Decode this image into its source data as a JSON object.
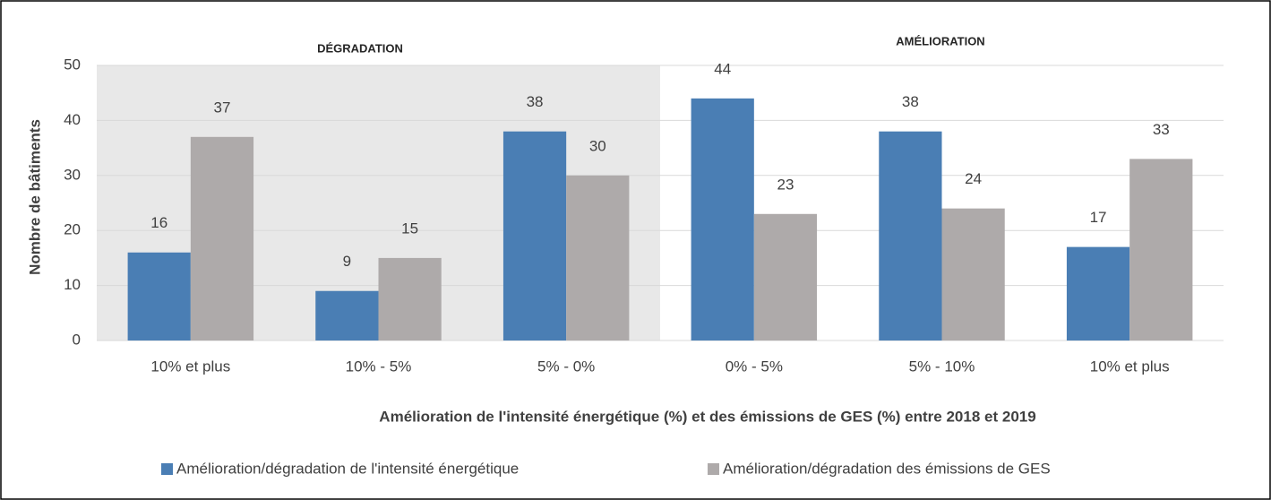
{
  "chart_data": {
    "type": "bar",
    "annotations": [
      "DÉGRADATION",
      "AMÉLIORATION"
    ],
    "y_label": "Nombre de bâtiments",
    "x_label": "Amélioration de l'intensité énergétique (%) et des émissions de GES (%) entre 2018 et 2019",
    "categories": [
      "10% et plus",
      "10% - 5%",
      "5% - 0%",
      "0% - 5%",
      "5% - 10%",
      "10% et plus"
    ],
    "series": [
      {
        "name": "Amélioration/dégradation de l'intensité énergétique",
        "color": "#4a7eb4",
        "values": [
          16,
          9,
          38,
          44,
          38,
          17
        ]
      },
      {
        "name": "Amélioration/dégradation des émissions de GES",
        "color": "#aeaaaa",
        "values": [
          37,
          15,
          30,
          23,
          24,
          33
        ]
      }
    ],
    "ylim": [
      0,
      50
    ],
    "yticks": [
      0,
      10,
      20,
      30,
      40,
      50
    ],
    "grid": true,
    "legend": "bottom"
  }
}
